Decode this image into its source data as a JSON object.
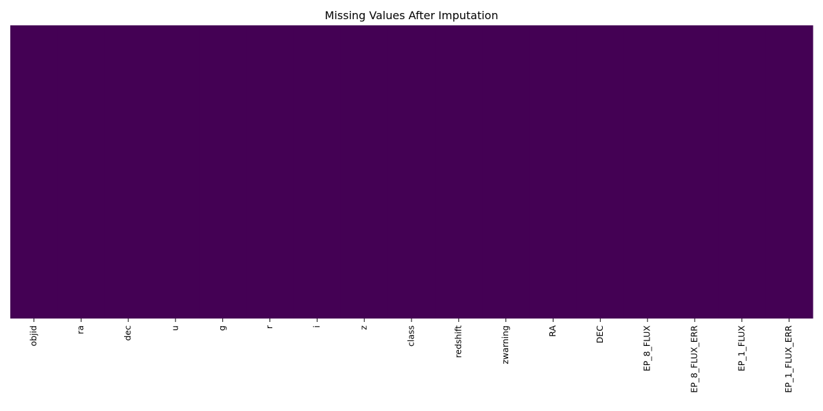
{
  "chart_data": {
    "type": "heatmap",
    "title": "Missing Values After Imputation",
    "xlabel": "",
    "ylabel": "",
    "categories": [
      "objid",
      "ra",
      "dec",
      "u",
      "g",
      "r",
      "i",
      "z",
      "class",
      "redshift",
      "zwarning",
      "RA",
      "DEC",
      "EP_8_FLUX",
      "EP_8_FLUX_ERR",
      "EP_1_FLUX",
      "EP_1_FLUX_ERR"
    ],
    "values": [
      0,
      0,
      0,
      0,
      0,
      0,
      0,
      0,
      0,
      0,
      0,
      0,
      0,
      0,
      0,
      0,
      0
    ],
    "colorbar": false,
    "y_ticks_visible": false,
    "colors": {
      "missing_false": "#440154",
      "missing_true": "#fde725"
    }
  }
}
